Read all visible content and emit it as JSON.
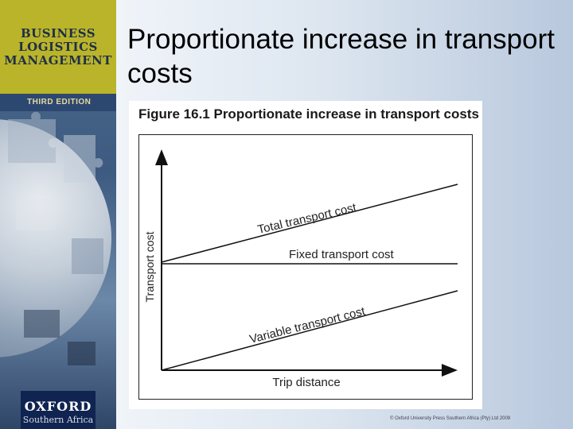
{
  "sidebar": {
    "cover_line_1": "BUSINESS",
    "cover_line_2": "LOGISTICS",
    "cover_line_3": "MANAGEMENT",
    "edition": "THIRD EDITION",
    "publisher_name": "OXFORD",
    "publisher_region": "Southern Africa",
    "colors": {
      "title_box": "#b9b42a",
      "band": "#2d4870",
      "publisher_box": "#0f2450"
    }
  },
  "slide": {
    "title": "Proportionate increase in transport costs"
  },
  "figure": {
    "caption": "Figure 16.1 Proportionate increase in transport costs",
    "y_axis_label": "Transport cost",
    "x_axis_label": "Trip distance",
    "lines": [
      {
        "key": "total",
        "label": "Total transport cost"
      },
      {
        "key": "fixed",
        "label": "Fixed transport cost"
      },
      {
        "key": "variable",
        "label": "Variable transport cost"
      }
    ]
  },
  "footer": {
    "copyright": "© Oxford University Press Southern Africa (Pty) Ltd 2009"
  }
}
